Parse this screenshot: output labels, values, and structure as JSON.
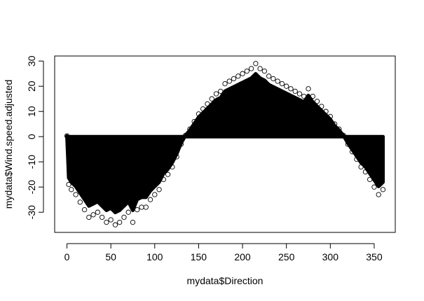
{
  "chart_data": {
    "type": "scatter",
    "xlabel": "mydata$Direction",
    "ylabel": "mydata$Wind.speed.adjusted",
    "xlim": [
      -14,
      374
    ],
    "ylim": [
      -38,
      32
    ],
    "x_ticks": [
      0,
      50,
      100,
      150,
      200,
      250,
      300,
      350
    ],
    "y_ticks": [
      -30,
      -20,
      -10,
      0,
      10,
      20,
      30
    ],
    "marker": "open-circle",
    "grid": false,
    "legend": "none",
    "series": [
      {
        "points": [
          [
            0,
            0.3
          ],
          [
            2,
            -19
          ],
          [
            5,
            -21
          ],
          [
            10,
            -23
          ],
          [
            15,
            -26
          ],
          [
            20,
            -29
          ],
          [
            25,
            -32
          ],
          [
            30,
            -31
          ],
          [
            35,
            -30
          ],
          [
            40,
            -32
          ],
          [
            45,
            -34
          ],
          [
            50,
            -33
          ],
          [
            55,
            -35
          ],
          [
            60,
            -34
          ],
          [
            65,
            -32
          ],
          [
            70,
            -30
          ],
          [
            75,
            -34
          ],
          [
            80,
            -29
          ],
          [
            85,
            -28
          ],
          [
            90,
            -28
          ],
          [
            95,
            -25
          ],
          [
            100,
            -23
          ],
          [
            105,
            -21
          ],
          [
            110,
            -17
          ],
          [
            115,
            -15
          ],
          [
            120,
            -12
          ],
          [
            125,
            -8
          ],
          [
            130,
            -3
          ],
          [
            135,
            0.5
          ],
          [
            140,
            3
          ],
          [
            145,
            6
          ],
          [
            150,
            9
          ],
          [
            155,
            11
          ],
          [
            160,
            13
          ],
          [
            165,
            15
          ],
          [
            170,
            17
          ],
          [
            175,
            18
          ],
          [
            180,
            21
          ],
          [
            185,
            22
          ],
          [
            190,
            23
          ],
          [
            195,
            24
          ],
          [
            200,
            25
          ],
          [
            205,
            26
          ],
          [
            210,
            27
          ],
          [
            215,
            29
          ],
          [
            220,
            27
          ],
          [
            225,
            26
          ],
          [
            230,
            24
          ],
          [
            235,
            23
          ],
          [
            240,
            22
          ],
          [
            245,
            21
          ],
          [
            250,
            20
          ],
          [
            255,
            19
          ],
          [
            260,
            18
          ],
          [
            265,
            17
          ],
          [
            270,
            16
          ],
          [
            275,
            19
          ],
          [
            280,
            16
          ],
          [
            285,
            14
          ],
          [
            290,
            12
          ],
          [
            295,
            10
          ],
          [
            300,
            8
          ],
          [
            305,
            5
          ],
          [
            310,
            3
          ],
          [
            315,
            0.5
          ],
          [
            320,
            -3
          ],
          [
            325,
            -6
          ],
          [
            330,
            -9
          ],
          [
            335,
            -12
          ],
          [
            340,
            -14
          ],
          [
            345,
            -17
          ],
          [
            350,
            -20
          ],
          [
            355,
            -23
          ],
          [
            360,
            -21
          ]
        ]
      }
    ]
  }
}
